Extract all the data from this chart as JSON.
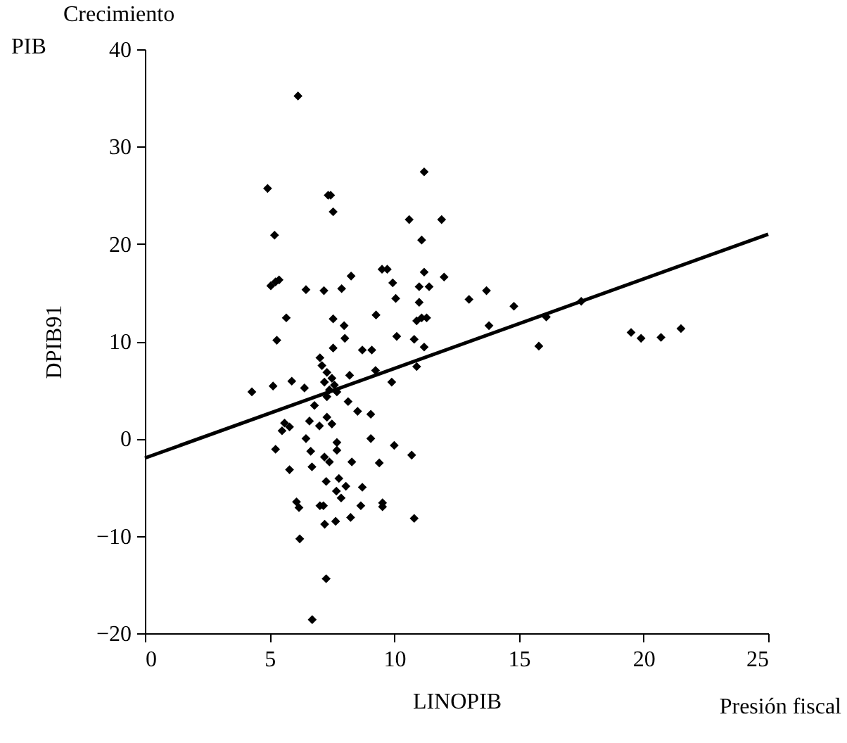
{
  "chart_data": {
    "type": "scatter",
    "xlabel": "LINOPIB",
    "ylabel": "DPIB91",
    "annotations": [
      "Crecimiento",
      "PIB",
      "Presión fiscal"
    ],
    "xlim": [
      0,
      25
    ],
    "xticks": [
      0,
      5,
      10,
      15,
      20,
      25
    ],
    "ylim": [
      -20,
      40
    ],
    "yticks": [
      -20,
      -10,
      0,
      10,
      20,
      30,
      40
    ],
    "grid": false,
    "series": [
      {
        "color": "#000000",
        "marker": "diamond",
        "x": [
          6.14,
          4.92,
          7.35,
          7.45,
          7.55,
          11.2,
          5.2,
          10.6,
          11.9,
          11.1,
          5.05,
          5.24,
          5.38,
          5.67,
          6.46,
          7.18,
          7.89,
          8.27,
          9.51,
          9.72,
          9.94,
          10.06,
          11.2,
          11.0,
          11.4,
          12.0,
          11.0,
          13.0,
          13.7,
          9.27,
          7.55,
          7.99,
          10.9,
          11.1,
          11.3,
          13.8,
          5.29,
          8.02,
          7.55,
          7.02,
          8.72,
          9.1,
          10.1,
          10.8,
          11.2,
          7.1,
          7.3,
          7.5,
          7.2,
          7.6,
          7.4,
          7.7,
          7.3,
          8.21,
          9.25,
          10.9,
          9.9,
          4.29,
          5.14,
          5.89,
          6.4,
          6.8,
          8.15,
          8.53,
          9.06,
          5.6,
          5.5,
          5.8,
          6.6,
          7.0,
          7.3,
          7.5,
          6.46,
          5.24,
          6.65,
          7.2,
          7.4,
          7.7,
          7.7,
          8.3,
          9.06,
          9.4,
          10.0,
          10.7,
          5.8,
          6.7,
          7.27,
          7.78,
          8.06,
          7.68,
          7.87,
          8.72,
          6.08,
          6.18,
          7.02,
          7.16,
          8.66,
          9.53,
          9.53,
          7.21,
          7.65,
          8.25,
          10.8,
          6.21,
          7.27,
          6.71,
          14.8,
          15.8,
          16.1,
          17.5,
          19.5,
          19.9,
          20.7,
          21.5
        ],
        "values": [
          35.2,
          25.7,
          25.0,
          25.0,
          23.3,
          27.4,
          20.9,
          22.5,
          22.5,
          20.4,
          15.7,
          16.1,
          16.3,
          12.4,
          15.3,
          15.2,
          15.4,
          16.7,
          17.4,
          17.4,
          16.0,
          14.4,
          17.1,
          15.6,
          15.6,
          16.6,
          14.0,
          14.3,
          15.2,
          12.7,
          12.3,
          11.6,
          12.1,
          12.4,
          12.4,
          11.6,
          10.1,
          10.3,
          9.3,
          8.3,
          9.1,
          9.1,
          10.5,
          10.2,
          9.4,
          7.5,
          6.8,
          6.2,
          5.8,
          5.5,
          5.0,
          4.8,
          4.3,
          6.5,
          7.0,
          7.4,
          5.8,
          4.8,
          5.4,
          5.9,
          5.2,
          3.4,
          3.8,
          2.8,
          2.5,
          1.6,
          0.8,
          1.2,
          1.8,
          1.3,
          2.2,
          1.5,
          0.0,
          -1.1,
          -1.3,
          -1.9,
          -2.4,
          -1.2,
          -0.4,
          -2.4,
          0.0,
          -2.5,
          -0.7,
          -1.7,
          -3.2,
          -2.9,
          -4.4,
          -4.1,
          -4.9,
          -5.4,
          -6.1,
          -5.0,
          -6.5,
          -7.1,
          -6.9,
          -6.9,
          -6.9,
          -6.6,
          -7.0,
          -8.8,
          -8.5,
          -8.1,
          -8.2,
          -10.3,
          -14.4,
          -18.6,
          13.6,
          9.5,
          12.5,
          14.1,
          10.9,
          10.3,
          10.4,
          11.3
        ]
      },
      {
        "type": "line",
        "color": "#000000",
        "x": [
          0,
          25
        ],
        "values": [
          -2,
          21
        ]
      }
    ]
  }
}
